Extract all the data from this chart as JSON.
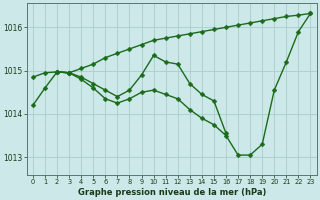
{
  "series": [
    {
      "x": [
        0,
        1,
        2,
        3,
        4,
        5,
        6,
        7,
        8,
        9,
        10,
        11,
        12,
        13,
        14,
        15,
        16,
        17,
        18,
        19,
        20,
        21,
        22,
        23
      ],
      "y": [
        1014.85,
        1014.95,
        1014.97,
        1014.95,
        1015.05,
        1015.15,
        1015.3,
        1015.4,
        1015.5,
        1015.6,
        1015.7,
        1015.75,
        1015.8,
        1015.85,
        1015.9,
        1015.95,
        1016.0,
        1016.05,
        1016.1,
        1016.15,
        1016.2,
        1016.25,
        1016.28,
        1016.32
      ]
    },
    {
      "x": [
        2,
        3,
        4,
        5,
        6,
        7,
        8,
        9,
        10,
        11,
        12,
        13,
        14,
        15,
        16
      ],
      "y": [
        1014.97,
        1014.95,
        1014.85,
        1014.7,
        1014.55,
        1014.4,
        1014.55,
        1014.9,
        1015.35,
        1015.2,
        1015.15,
        1014.7,
        1014.45,
        1014.3,
        1013.55
      ]
    },
    {
      "x": [
        2,
        3,
        4,
        5,
        6,
        7,
        8,
        9,
        10,
        11,
        12,
        13,
        14,
        15,
        16,
        17,
        18,
        19,
        20,
        21,
        22,
        23
      ],
      "y": [
        1014.97,
        1014.95,
        1014.8,
        1014.6,
        1014.35,
        1014.25,
        1014.35,
        1014.5,
        1014.55,
        1014.45,
        1014.35,
        1014.1,
        1013.9,
        1013.75,
        1013.5,
        1013.05,
        1013.05,
        1013.3,
        1014.55,
        1015.2,
        1015.9,
        1016.32
      ]
    },
    {
      "x": [
        0,
        1,
        2,
        3
      ],
      "y": [
        1014.2,
        1014.6,
        1014.97,
        1014.95
      ]
    }
  ],
  "line_color": "#1a6b1a",
  "marker": "D",
  "marker_size": 2.5,
  "bg_color": "#cce8e8",
  "grid_color": "#aacccc",
  "tick_label_color": "#1a3a1a",
  "xlabel": "Graphe pression niveau de la mer (hPa)",
  "ylim": [
    1012.6,
    1016.55
  ],
  "xlim": [
    -0.5,
    23.5
  ],
  "yticks": [
    1013,
    1014,
    1015,
    1016
  ],
  "xticks": [
    0,
    1,
    2,
    3,
    4,
    5,
    6,
    7,
    8,
    9,
    10,
    11,
    12,
    13,
    14,
    15,
    16,
    17,
    18,
    19,
    20,
    21,
    22,
    23
  ],
  "linewidth": 1.0
}
